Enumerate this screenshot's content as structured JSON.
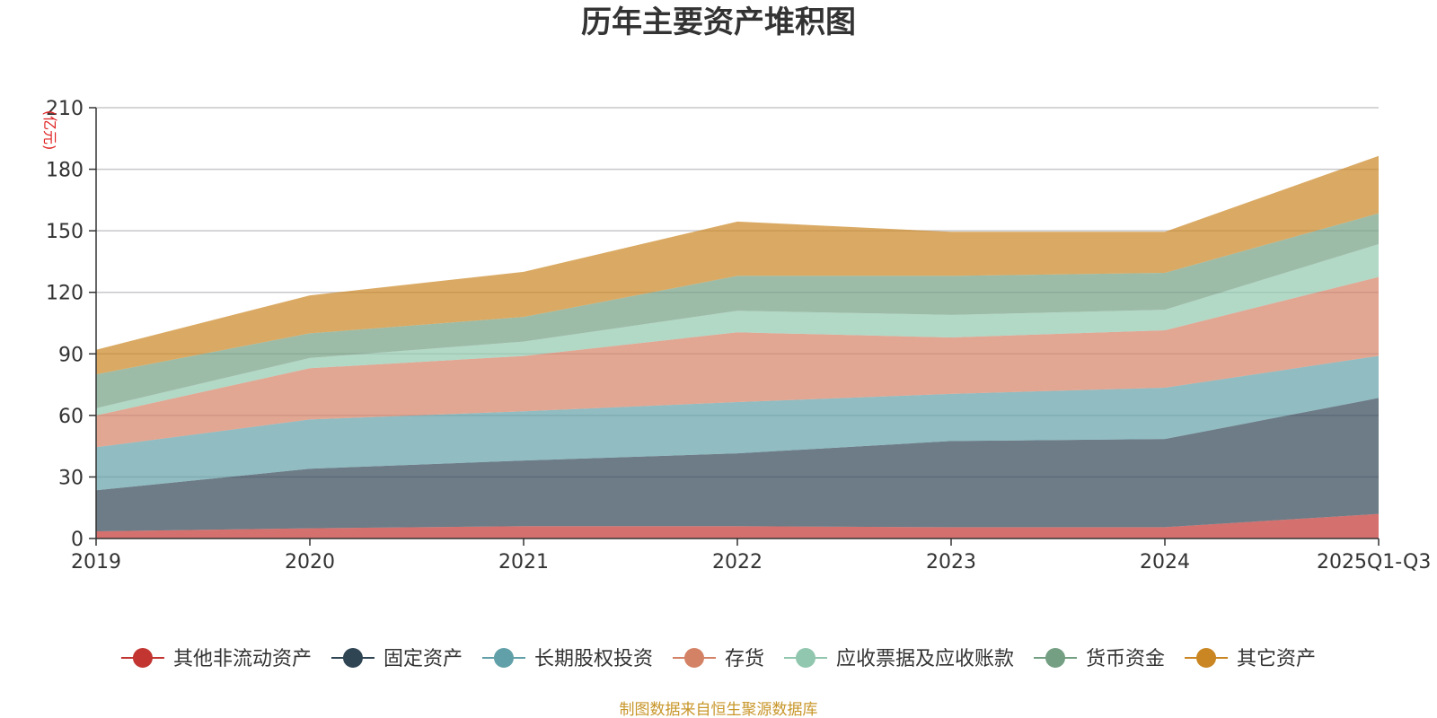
{
  "chart_data": {
    "type": "area",
    "stacked": true,
    "title": "历年主要资产堆积图",
    "unit_label": "(亿元)",
    "source": "制图数据来自恒生聚源数据库",
    "categories": [
      "2019",
      "2020",
      "2021",
      "2022",
      "2023",
      "2024",
      "2025Q1-Q3"
    ],
    "ylim": [
      0,
      210
    ],
    "yticks": [
      0,
      30,
      60,
      90,
      120,
      150,
      180,
      210
    ],
    "grid": true,
    "legend_position": "bottom",
    "series": [
      {
        "name": "其他非流动资产",
        "color": "#c23531",
        "values": [
          3.5,
          5.0,
          6.0,
          6.0,
          5.5,
          5.5,
          12.0
        ]
      },
      {
        "name": "固定资产",
        "color": "#2f4554",
        "values": [
          20.0,
          29.0,
          32.0,
          35.5,
          42.0,
          43.0,
          56.5
        ]
      },
      {
        "name": "长期股权投资",
        "color": "#61a0a8",
        "values": [
          21.0,
          24.0,
          24.0,
          25.0,
          23.0,
          25.0,
          20.5
        ]
      },
      {
        "name": "存货",
        "color": "#d48265",
        "values": [
          15.5,
          25.0,
          27.0,
          34.0,
          27.5,
          28.0,
          38.5
        ]
      },
      {
        "name": "应收票据及应收账款",
        "color": "#91c7ae",
        "values": [
          3.5,
          5.0,
          7.0,
          10.5,
          11.0,
          10.0,
          16.0
        ]
      },
      {
        "name": "货币资金",
        "color": "#749f83",
        "values": [
          16.5,
          12.0,
          12.0,
          17.0,
          19.0,
          18.0,
          15.0
        ]
      },
      {
        "name": "其它资产",
        "color": "#ca8622",
        "values": [
          12.0,
          18.5,
          22.0,
          26.5,
          21.5,
          20.0,
          28.0
        ]
      }
    ]
  }
}
